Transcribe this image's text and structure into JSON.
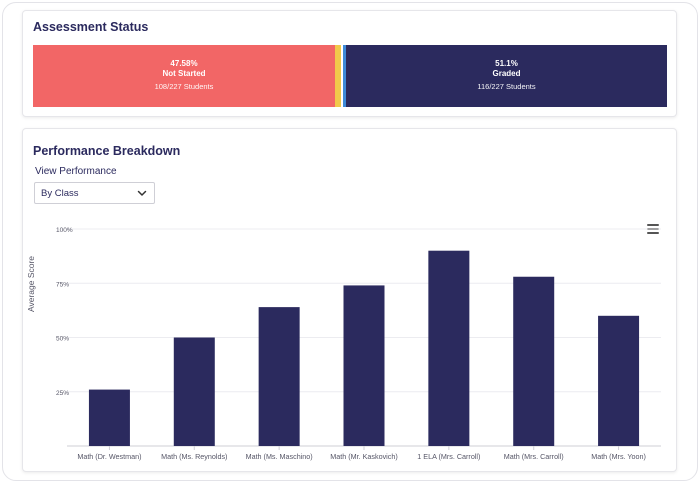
{
  "assessment_status": {
    "title": "Assessment Status",
    "segments": [
      {
        "key": "not_started",
        "pct_label": "47.58%",
        "name": "Not Started",
        "count": "108/227 Students",
        "fraction": 0.4758,
        "color": "#f26666"
      },
      {
        "key": "yellow",
        "pct_label": "",
        "name": "",
        "count": "",
        "fraction": 0.0088,
        "color": "#f1c84b"
      },
      {
        "key": "white",
        "pct_label": "",
        "name": "",
        "count": "",
        "fraction": 0.003,
        "color": "#ffffff"
      },
      {
        "key": "blue",
        "pct_label": "",
        "name": "",
        "count": "",
        "fraction": 0.005,
        "color": "#3d8ad8"
      },
      {
        "key": "graded",
        "pct_label": "51.1%",
        "name": "Graded",
        "count": "116/227 Students",
        "fraction": 0.511,
        "color": "#2b2a5e"
      }
    ]
  },
  "performance": {
    "title": "Performance Breakdown",
    "view_label": "View Performance",
    "dropdown_value": "By Class",
    "menu_icon": "hamburger-menu-icon",
    "bar_color": "#2b2a5e"
  },
  "chart_data": {
    "type": "bar",
    "ylabel": "Average Score",
    "xlabel": "",
    "ylim": [
      0,
      100
    ],
    "yticks": [
      "25%",
      "50%",
      "75%",
      "100%"
    ],
    "yticks_values": [
      25,
      50,
      75,
      100
    ],
    "categories": [
      "Math (Dr. Westman)",
      "Math (Ms. Reynolds)",
      "Math (Ms. Maschino)",
      "Math (Mr. Kaskovich)",
      "1 ELA (Mrs. Carroll)",
      "Math (Mrs. Carroll)",
      "Math (Mrs. Yoon)"
    ],
    "values": [
      26,
      50,
      64,
      74,
      90,
      78,
      60
    ],
    "grid": true
  }
}
